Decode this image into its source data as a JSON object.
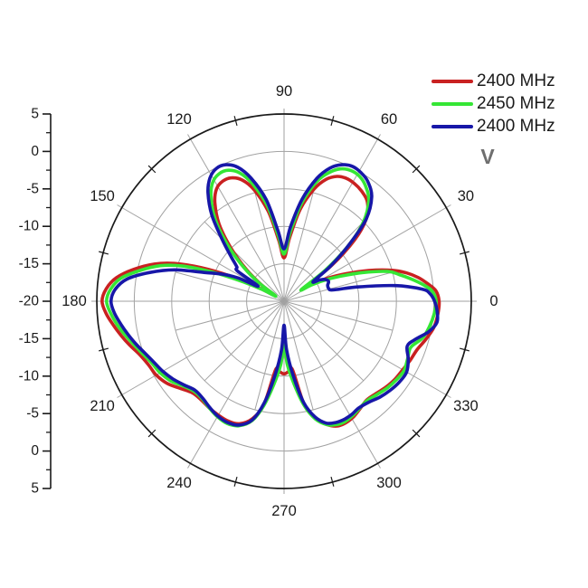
{
  "chart_data": {
    "type": "line",
    "subtype": "polar-radiation-pattern",
    "angular_unit": "degrees",
    "angular_ticks": [
      0,
      30,
      60,
      90,
      120,
      150,
      180,
      210,
      240,
      270,
      300,
      330
    ],
    "minor_spoke_step_deg": 15,
    "radial_axis": {
      "center_db": -20,
      "outer_db": 5,
      "step_db": 5,
      "labels": [
        "5",
        "0",
        "-5",
        "-10",
        "-15",
        "-20",
        "-15",
        "-10",
        "-5",
        "0",
        "5"
      ]
    },
    "grid": true,
    "legend_position": "top-right",
    "annotation": "V",
    "series": [
      {
        "name": "2400 MHz",
        "color": "#c92121",
        "points": [
          [
            0,
            0.7
          ],
          [
            4,
            0.3
          ],
          [
            7,
            -0.7
          ],
          [
            10,
            -1.8
          ],
          [
            13,
            -3.2
          ],
          [
            16,
            -5.0
          ],
          [
            20,
            -8.0
          ],
          [
            24,
            -11.0
          ],
          [
            28,
            -13.5
          ],
          [
            31,
            -15.2
          ],
          [
            34,
            -16.4
          ],
          [
            37,
            -12.0
          ],
          [
            41,
            -7.5
          ],
          [
            45,
            -4.5
          ],
          [
            50,
            -2.7
          ],
          [
            55,
            -2.0
          ],
          [
            59,
            -1.7
          ],
          [
            63,
            -1.6
          ],
          [
            67,
            -1.9
          ],
          [
            71,
            -2.8
          ],
          [
            75,
            -4.5
          ],
          [
            80,
            -7.5
          ],
          [
            85,
            -11.5
          ],
          [
            90,
            -14.2
          ],
          [
            95,
            -11.8
          ],
          [
            100,
            -7.8
          ],
          [
            105,
            -4.6
          ],
          [
            109,
            -2.9
          ],
          [
            113,
            -2.1
          ],
          [
            117,
            -2.0
          ],
          [
            121,
            -2.5
          ],
          [
            125,
            -3.9
          ],
          [
            130,
            -6.5
          ],
          [
            135,
            -10.0
          ],
          [
            140,
            -13.5
          ],
          [
            144,
            -16.3
          ],
          [
            148,
            -18.5
          ],
          [
            152,
            -16.0
          ],
          [
            155,
            -12.0
          ],
          [
            158,
            -8.0
          ],
          [
            161,
            -4.5
          ],
          [
            164,
            -2.0
          ],
          [
            168,
            0.5
          ],
          [
            172,
            2.6
          ],
          [
            176,
            3.8
          ],
          [
            180,
            4.3
          ],
          [
            184,
            3.8
          ],
          [
            188,
            3.0
          ],
          [
            192,
            2.2
          ],
          [
            196,
            1.4
          ],
          [
            200,
            0.6
          ],
          [
            205,
            0.0
          ],
          [
            210,
            -0.3
          ],
          [
            215,
            -0.9
          ],
          [
            220,
            -1.9
          ],
          [
            225,
            -2.7
          ],
          [
            230,
            -2.8
          ],
          [
            235,
            -2.6
          ],
          [
            240,
            -2.45
          ],
          [
            245,
            -2.35
          ],
          [
            250,
            -2.6
          ],
          [
            255,
            -3.8
          ],
          [
            259,
            -6.0
          ],
          [
            263,
            -10.8
          ],
          [
            266,
            -10.6
          ],
          [
            270,
            -10.3
          ],
          [
            274,
            -10.6
          ],
          [
            277,
            -10.8
          ],
          [
            281,
            -6.0
          ],
          [
            285,
            -3.8
          ],
          [
            289,
            -2.6
          ],
          [
            293,
            -1.9
          ],
          [
            297,
            -1.8
          ],
          [
            301,
            -2.0
          ],
          [
            305,
            -2.4
          ],
          [
            310,
            -2.8
          ],
          [
            315,
            -2.6
          ],
          [
            320,
            -2.2
          ],
          [
            325,
            -1.9
          ],
          [
            330,
            -1.7
          ],
          [
            335,
            -1.4
          ],
          [
            340,
            -1.1
          ],
          [
            345,
            -0.4
          ],
          [
            350,
            0.3
          ],
          [
            355,
            0.6
          ]
        ]
      },
      {
        "name": "2450 MHz",
        "color": "#35e635",
        "points": [
          [
            0,
            0.3
          ],
          [
            4,
            -0.2
          ],
          [
            7,
            -1.4
          ],
          [
            10,
            -2.8
          ],
          [
            13,
            -4.2
          ],
          [
            16,
            -5.6
          ],
          [
            20,
            -8.8
          ],
          [
            24,
            -11.8
          ],
          [
            28,
            -14.2
          ],
          [
            31,
            -16.0
          ],
          [
            34,
            -17.2
          ],
          [
            37,
            -13.0
          ],
          [
            41,
            -8.5
          ],
          [
            45,
            -5.0
          ],
          [
            50,
            -2.4
          ],
          [
            55,
            -1.1
          ],
          [
            59,
            -0.5
          ],
          [
            63,
            -0.4
          ],
          [
            67,
            -0.8
          ],
          [
            71,
            -1.9
          ],
          [
            75,
            -3.6
          ],
          [
            80,
            -6.8
          ],
          [
            85,
            -10.8
          ],
          [
            90,
            -13.7
          ],
          [
            95,
            -11.2
          ],
          [
            100,
            -7.0
          ],
          [
            105,
            -3.8
          ],
          [
            109,
            -1.9
          ],
          [
            113,
            -1.0
          ],
          [
            117,
            -0.9
          ],
          [
            121,
            -1.5
          ],
          [
            125,
            -3.0
          ],
          [
            130,
            -5.7
          ],
          [
            135,
            -9.3
          ],
          [
            140,
            -13.0
          ],
          [
            144,
            -16.0
          ],
          [
            148,
            -18.7
          ],
          [
            152,
            -16.5
          ],
          [
            155,
            -13.5
          ],
          [
            158,
            -9.5
          ],
          [
            161,
            -5.5
          ],
          [
            164,
            -2.8
          ],
          [
            168,
            -0.3
          ],
          [
            172,
            2.0
          ],
          [
            176,
            3.2
          ],
          [
            180,
            3.7
          ],
          [
            184,
            3.2
          ],
          [
            188,
            2.5
          ],
          [
            192,
            1.7
          ],
          [
            196,
            0.9
          ],
          [
            200,
            0.2
          ],
          [
            205,
            -0.5
          ],
          [
            210,
            -0.9
          ],
          [
            215,
            -1.5
          ],
          [
            220,
            -2.4
          ],
          [
            225,
            -3.0
          ],
          [
            230,
            -3.0
          ],
          [
            235,
            -2.6
          ],
          [
            240,
            -2.2
          ],
          [
            245,
            -2.0
          ],
          [
            250,
            -2.3
          ],
          [
            255,
            -3.5
          ],
          [
            259,
            -5.8
          ],
          [
            263,
            -8.8
          ],
          [
            267,
            -11.5
          ],
          [
            270,
            -14.2
          ],
          [
            273,
            -11.5
          ],
          [
            277,
            -8.8
          ],
          [
            281,
            -5.8
          ],
          [
            285,
            -3.7
          ],
          [
            289,
            -2.6
          ],
          [
            293,
            -2.1
          ],
          [
            297,
            -2.0
          ],
          [
            301,
            -2.2
          ],
          [
            305,
            -2.5
          ],
          [
            310,
            -2.7
          ],
          [
            315,
            -2.4
          ],
          [
            320,
            -2.0
          ],
          [
            325,
            -1.7
          ],
          [
            330,
            -1.5
          ],
          [
            335,
            -1.8
          ],
          [
            340,
            -2.0
          ],
          [
            345,
            -0.9
          ],
          [
            350,
            -0.3
          ],
          [
            355,
            0.1
          ]
        ]
      },
      {
        "name": "2400 MHz",
        "color": "#1717a8",
        "points": [
          [
            0,
            0.1
          ],
          [
            3,
            -0.5
          ],
          [
            5,
            -1.5
          ],
          [
            8,
            -5.0
          ],
          [
            11,
            -10.0
          ],
          [
            13,
            -13.3
          ],
          [
            16,
            -13.8
          ],
          [
            20,
            -13.8
          ],
          [
            24,
            -13.5
          ],
          [
            28,
            -13.8
          ],
          [
            31,
            -14.5
          ],
          [
            34,
            -15.3
          ],
          [
            37,
            -12.3
          ],
          [
            41,
            -8.5
          ],
          [
            45,
            -4.5
          ],
          [
            50,
            -1.8
          ],
          [
            55,
            -0.5
          ],
          [
            59,
            0.0
          ],
          [
            63,
            0.2
          ],
          [
            67,
            -0.2
          ],
          [
            71,
            -1.2
          ],
          [
            75,
            -3.0
          ],
          [
            80,
            -6.2
          ],
          [
            85,
            -10.0
          ],
          [
            90,
            -13.0
          ],
          [
            95,
            -10.5
          ],
          [
            100,
            -6.2
          ],
          [
            105,
            -3.0
          ],
          [
            109,
            -1.1
          ],
          [
            113,
            -0.2
          ],
          [
            117,
            -0.1
          ],
          [
            121,
            -0.8
          ],
          [
            125,
            -2.3
          ],
          [
            130,
            -5.0
          ],
          [
            135,
            -8.3
          ],
          [
            140,
            -10.8
          ],
          [
            144,
            -12.2
          ],
          [
            147,
            -12.6
          ],
          [
            150,
            -16.0
          ],
          [
            153,
            -13.2
          ],
          [
            156,
            -11.2
          ],
          [
            160,
            -8.8
          ],
          [
            164,
            -4.8
          ],
          [
            168,
            -1.6
          ],
          [
            172,
            1.2
          ],
          [
            176,
            2.6
          ],
          [
            180,
            3.1
          ],
          [
            184,
            2.7
          ],
          [
            188,
            2.0
          ],
          [
            192,
            1.3
          ],
          [
            196,
            0.6
          ],
          [
            200,
            -0.1
          ],
          [
            205,
            -0.8
          ],
          [
            210,
            -1.3
          ],
          [
            215,
            -1.9
          ],
          [
            220,
            -2.6
          ],
          [
            225,
            -3.2
          ],
          [
            230,
            -3.1
          ],
          [
            235,
            -2.7
          ],
          [
            240,
            -2.3
          ],
          [
            245,
            -2.15
          ],
          [
            250,
            -2.4
          ],
          [
            255,
            -3.6
          ],
          [
            259,
            -6.2
          ],
          [
            263,
            -10.0
          ],
          [
            267,
            -13.5
          ],
          [
            270,
            -16.8
          ],
          [
            273,
            -13.5
          ],
          [
            277,
            -10.0
          ],
          [
            281,
            -6.2
          ],
          [
            285,
            -4.0
          ],
          [
            289,
            -2.8
          ],
          [
            293,
            -2.4
          ],
          [
            297,
            -2.3
          ],
          [
            301,
            -2.4
          ],
          [
            305,
            -2.6
          ],
          [
            310,
            -2.4
          ],
          [
            315,
            -1.9
          ],
          [
            320,
            -1.5
          ],
          [
            325,
            -1.2
          ],
          [
            330,
            -1.1
          ],
          [
            335,
            -1.7
          ],
          [
            340,
            -2.5
          ],
          [
            344,
            -1.7
          ],
          [
            348,
            -0.3
          ],
          [
            352,
            0.6
          ],
          [
            356,
            0.5
          ]
        ]
      }
    ]
  },
  "colors": {
    "background": "#ffffff",
    "grid": "#a2a2a2",
    "axis": "#1a1a1a",
    "text": "#1a1a1a",
    "annotation": "#6f6f6f"
  }
}
